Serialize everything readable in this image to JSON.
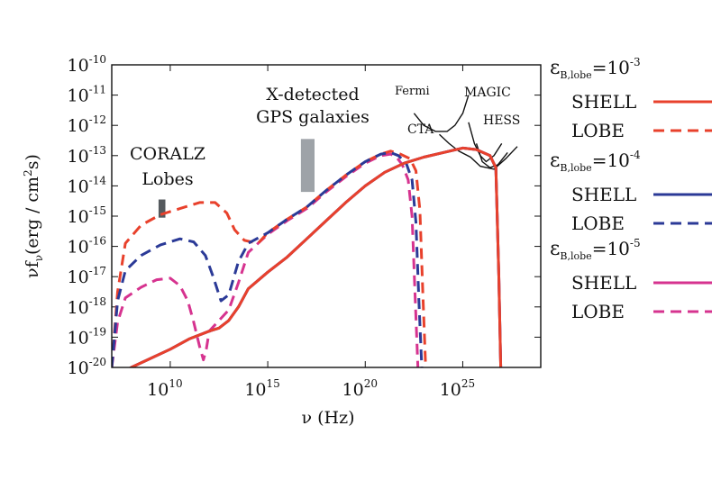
{
  "chart_data": {
    "type": "line",
    "xlabel": "ν (Hz)",
    "ylabel": "νf",
    "ylabel_sub": "ν",
    "ylabel_units": "(erg / cm",
    "ylabel_units_sup": "2",
    "ylabel_units_end": "s)",
    "x_scale": "log",
    "y_scale": "log",
    "xlim": [
      10000000.0,
      1e+29
    ],
    "ylim": [
      1e-20,
      1e-10
    ],
    "x_ticks": [
      {
        "base": "10",
        "exp": "10",
        "value": 10000000000.0
      },
      {
        "base": "10",
        "exp": "15",
        "value": 1000000000000000.0
      },
      {
        "base": "10",
        "exp": "20",
        "value": 1e+20
      },
      {
        "base": "10",
        "exp": "25",
        "value": 1e+25
      }
    ],
    "y_ticks": [
      {
        "base": "10",
        "exp": "-10",
        "value": 1e-10
      },
      {
        "base": "10",
        "exp": "-11",
        "value": 1e-11
      },
      {
        "base": "10",
        "exp": "-12",
        "value": 1e-12
      },
      {
        "base": "10",
        "exp": "-13",
        "value": 1e-13
      },
      {
        "base": "10",
        "exp": "-14",
        "value": 1e-14
      },
      {
        "base": "10",
        "exp": "-15",
        "value": 1e-15
      },
      {
        "base": "10",
        "exp": "-16",
        "value": 1e-16
      },
      {
        "base": "10",
        "exp": "-17",
        "value": 1e-17
      },
      {
        "base": "10",
        "exp": "-18",
        "value": 1e-18
      },
      {
        "base": "10",
        "exp": "-19",
        "value": 1e-19
      },
      {
        "base": "10",
        "exp": "-20",
        "value": 1e-20
      }
    ],
    "legend_placement": "right",
    "legend_groups": [
      {
        "eps": "ε",
        "sub": "B,lobe",
        "eq": "=10",
        "exp": "-3"
      },
      {
        "eps": "ε",
        "sub": "B,lobe",
        "eq": "=10",
        "exp": "-4"
      },
      {
        "eps": "ε",
        "sub": "B,lobe",
        "eq": "=10",
        "exp": "-5"
      }
    ],
    "series": [
      {
        "name": "SHELL",
        "group": 0,
        "color": "#e8412c",
        "dash": "solid",
        "x": [
          7.0,
          7.5,
          8,
          9,
          10,
          11,
          12,
          12.5,
          13,
          13.5,
          14,
          15,
          16,
          17,
          18,
          19,
          20,
          21,
          22,
          23,
          24,
          25,
          25.7,
          26.4,
          26.7,
          26.85,
          26.95
        ],
        "y": [
          -20.6,
          -20.2,
          -20.0,
          -19.7,
          -19.4,
          -19.05,
          -18.8,
          -18.7,
          -18.45,
          -18.0,
          -17.4,
          -16.85,
          -16.35,
          -15.75,
          -15.15,
          -14.55,
          -14.0,
          -13.55,
          -13.25,
          -13.05,
          -12.9,
          -12.75,
          -12.8,
          -13.0,
          -13.4,
          -17.0,
          -20.0
        ]
      },
      {
        "name": "LOBE",
        "group": 0,
        "color": "#e8412c",
        "dash": "dashed",
        "x": [
          7.0,
          7.3,
          7.7,
          8.5,
          9.5,
          10.5,
          11.5,
          12.3,
          12.9,
          13.3,
          13.8,
          14.5,
          15,
          16,
          17,
          18,
          19,
          20,
          20.8,
          21.3,
          21.8,
          22.3,
          22.6,
          22.8,
          22.95,
          23.1
        ],
        "y": [
          -20.0,
          -17.5,
          -15.9,
          -15.3,
          -14.95,
          -14.75,
          -14.55,
          -14.55,
          -14.9,
          -15.45,
          -15.8,
          -15.9,
          -15.55,
          -15.1,
          -14.7,
          -14.15,
          -13.65,
          -13.2,
          -12.95,
          -12.85,
          -12.95,
          -13.1,
          -13.5,
          -14.8,
          -17.5,
          -20.0
        ]
      },
      {
        "name": "SHELL",
        "group": 1,
        "color": "#2b3a97",
        "dash": "solid",
        "x": [
          7.0,
          7.5,
          8,
          9,
          10,
          11,
          12,
          12.5,
          13,
          13.5,
          14,
          15,
          16,
          17,
          18,
          19,
          20,
          21,
          22,
          23,
          24,
          25,
          25.7,
          26.4,
          26.7,
          26.85,
          26.95
        ],
        "y": [
          -20.6,
          -20.2,
          -20.0,
          -19.7,
          -19.4,
          -19.05,
          -18.8,
          -18.7,
          -18.45,
          -18.0,
          -17.4,
          -16.85,
          -16.35,
          -15.75,
          -15.15,
          -14.55,
          -14.0,
          -13.55,
          -13.25,
          -13.05,
          -12.9,
          -12.75,
          -12.8,
          -13.0,
          -13.4,
          -17.0,
          -20.0
        ]
      },
      {
        "name": "LOBE",
        "group": 1,
        "color": "#2b3a97",
        "dash": "dashed",
        "x": [
          7.0,
          7.3,
          7.7,
          8.5,
          9.5,
          10.5,
          11.2,
          11.8,
          12.2,
          12.6,
          13.0,
          13.5,
          14,
          15,
          16,
          17,
          18,
          19,
          20,
          20.8,
          21.3,
          21.7,
          22.1,
          22.4,
          22.6,
          22.75,
          22.9
        ],
        "y": [
          -20.0,
          -17.8,
          -16.8,
          -16.3,
          -15.95,
          -15.75,
          -15.85,
          -16.3,
          -17.0,
          -17.8,
          -17.6,
          -16.5,
          -15.9,
          -15.55,
          -15.1,
          -14.7,
          -14.15,
          -13.65,
          -13.2,
          -12.95,
          -12.9,
          -13.0,
          -13.25,
          -13.8,
          -15.2,
          -17.8,
          -20.0
        ]
      },
      {
        "name": "SHELL",
        "group": 2,
        "color": "#d6338f",
        "dash": "solid",
        "x": [
          7.0,
          7.5,
          8,
          9,
          10,
          11,
          12,
          12.5,
          13,
          13.5,
          14,
          15,
          16,
          17,
          18,
          19,
          20,
          21,
          22,
          23,
          24,
          25,
          25.7,
          26.4,
          26.7,
          26.85,
          26.95
        ],
        "y": [
          -20.6,
          -20.2,
          -20.0,
          -19.7,
          -19.4,
          -19.05,
          -18.8,
          -18.7,
          -18.45,
          -18.0,
          -17.4,
          -16.85,
          -16.35,
          -15.75,
          -15.15,
          -14.55,
          -14.0,
          -13.55,
          -13.25,
          -13.05,
          -12.9,
          -12.75,
          -12.8,
          -13.0,
          -13.4,
          -17.0,
          -20.0
        ]
      },
      {
        "name": "LOBE",
        "group": 2,
        "color": "#d6338f",
        "dash": "dashed",
        "x": [
          7.0,
          7.3,
          7.7,
          8.5,
          9.3,
          10.0,
          10.5,
          10.9,
          11.2,
          11.5,
          11.7,
          11.85,
          12.0,
          12.5,
          13.0,
          13.5,
          14,
          15,
          16,
          17,
          18,
          19,
          20,
          20.8,
          21.3,
          21.6,
          21.9,
          22.2,
          22.4,
          22.55,
          22.7
        ],
        "y": [
          -20.0,
          -18.5,
          -17.7,
          -17.35,
          -17.1,
          -17.05,
          -17.3,
          -17.8,
          -18.5,
          -19.3,
          -19.75,
          -19.4,
          -18.8,
          -18.45,
          -18.1,
          -17.2,
          -16.2,
          -15.6,
          -15.15,
          -14.75,
          -14.2,
          -13.7,
          -13.25,
          -13.0,
          -12.95,
          -13.05,
          -13.3,
          -13.8,
          -15.0,
          -17.5,
          -20.0
        ]
      }
    ],
    "shaded_regions": [
      {
        "label": "CORALZ\nLobes",
        "x_range": [
          9.4,
          9.75
        ],
        "y_range": [
          -15.05,
          -14.45
        ],
        "color": "#555a5e"
      },
      {
        "label": "X-detected\nGPS galaxies",
        "x_range": [
          16.7,
          17.4
        ],
        "y_range": [
          -14.2,
          -12.45
        ],
        "color": "#9ea3a8"
      }
    ],
    "sensitivity_curves": [
      {
        "label": "Fermi",
        "x": [
          22.5,
          23.0,
          23.6,
          24.2,
          24.6,
          25.0,
          25.3
        ],
        "y": [
          -11.6,
          -12.0,
          -12.2,
          -12.2,
          -12.0,
          -11.6,
          -11.0
        ]
      },
      {
        "label": "MAGIC",
        "x": [
          25.3,
          25.6,
          25.9,
          26.2,
          26.6,
          27.0
        ],
        "y": [
          -11.9,
          -12.6,
          -13.0,
          -13.2,
          -13.0,
          -12.6
        ]
      },
      {
        "label": "HESS",
        "x": [
          25.7,
          26.0,
          26.4,
          26.8,
          27.3
        ],
        "y": [
          -12.6,
          -13.2,
          -13.4,
          -13.3,
          -12.9
        ]
      },
      {
        "label": "CTA",
        "x": [
          23.8,
          24.3,
          24.8,
          25.4,
          25.9,
          26.6,
          27.2,
          27.8
        ],
        "y": [
          -12.3,
          -12.6,
          -12.85,
          -13.05,
          -13.35,
          -13.45,
          -13.1,
          -12.7
        ]
      }
    ],
    "annotations": {
      "coralz": [
        "CORALZ",
        "Lobes"
      ],
      "gps": [
        "X-detected",
        "GPS galaxies"
      ],
      "fermi": "Fermi",
      "cta": "CTA",
      "magic": "MAGIC",
      "hess": "HESS"
    },
    "legend_labels": {
      "shell": "SHELL",
      "lobe": "LOBE"
    }
  }
}
